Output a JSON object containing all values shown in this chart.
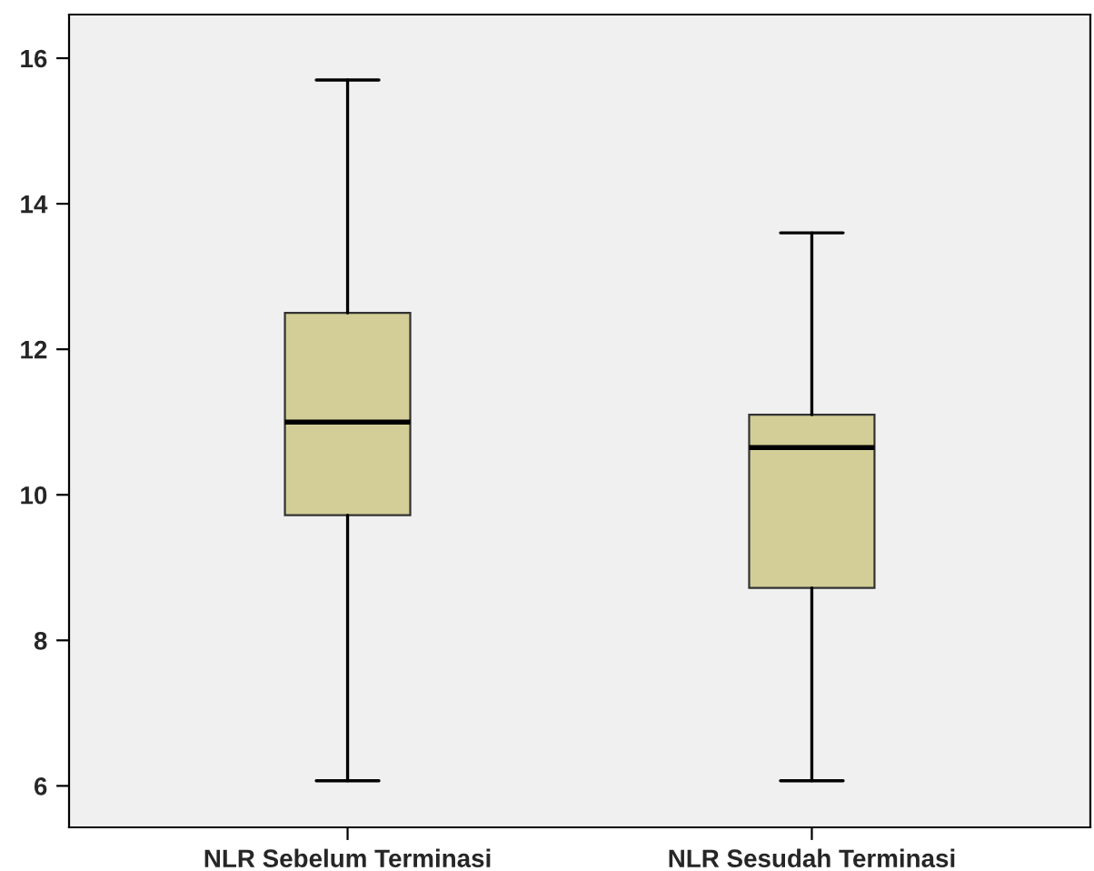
{
  "chart_data": {
    "type": "box",
    "categories": [
      "NLR Sebelum Terminasi",
      "NLR Sesudah Terminasi"
    ],
    "boxes": [
      {
        "low": 6.07,
        "q1": 9.72,
        "median": 11.0,
        "q3": 12.5,
        "high": 15.7
      },
      {
        "low": 6.07,
        "q1": 8.72,
        "median": 10.65,
        "q3": 11.1,
        "high": 13.6
      }
    ],
    "color": "#d3ce97",
    "ylim": [
      5.43,
      16.6
    ],
    "yticks": [
      6,
      8,
      10,
      12,
      14,
      16
    ],
    "grid": false
  }
}
